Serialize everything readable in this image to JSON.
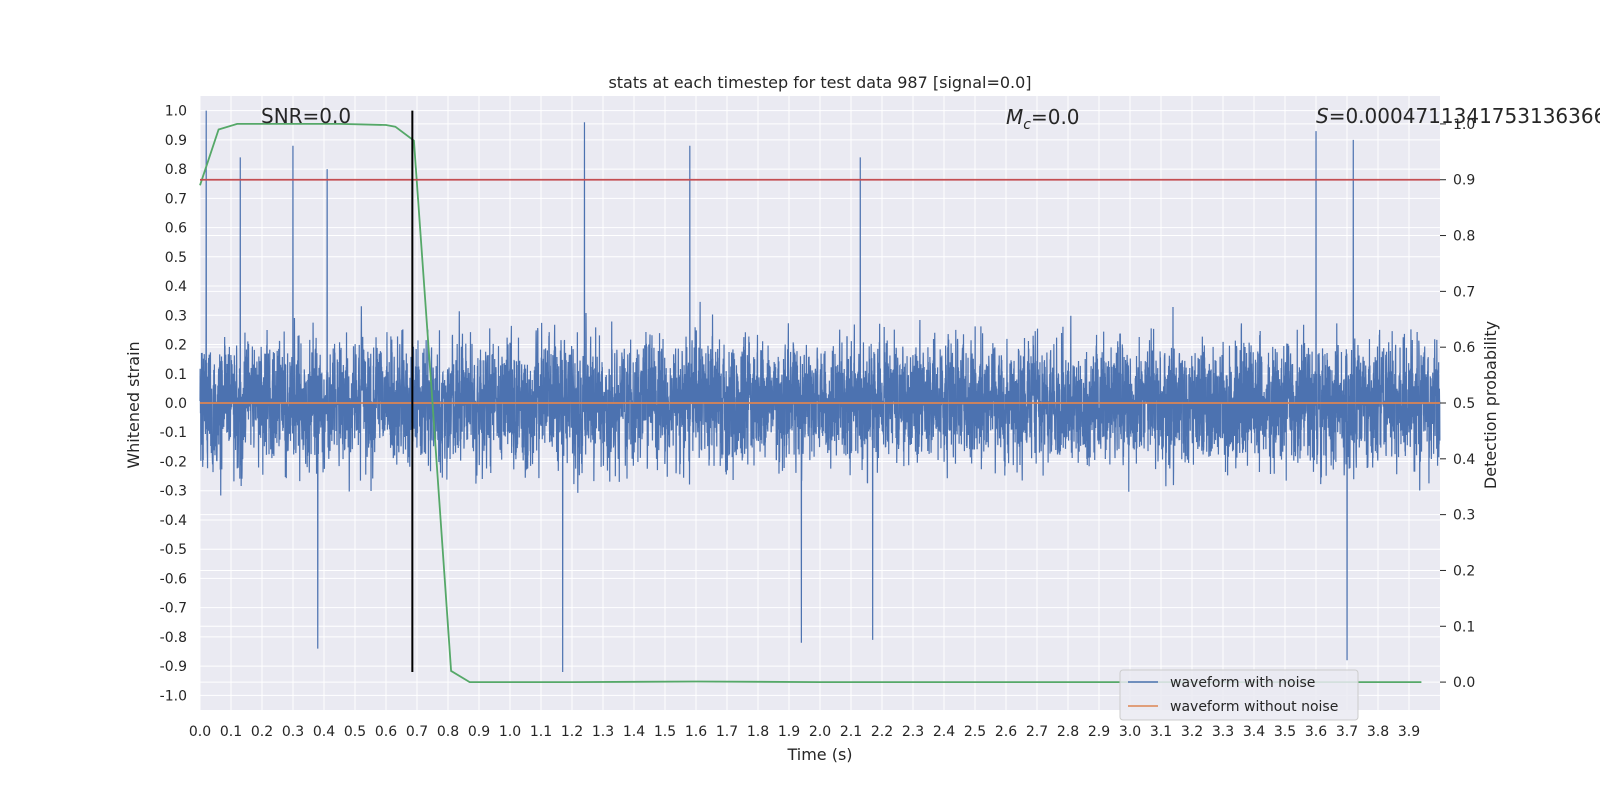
{
  "chart_data": {
    "type": "line",
    "title": "stats at each timestep for test data 987 [signal=0.0]",
    "xlabel": "Time (s)",
    "ylabel_left": "Whitened strain",
    "ylabel_right": "Detection probability",
    "xlim": [
      0.0,
      4.0
    ],
    "ylim_left": [
      -1.05,
      1.05
    ],
    "ylim_right": [
      -0.05,
      1.05
    ],
    "x_ticks": [
      "0.0",
      "0.1",
      "0.2",
      "0.3",
      "0.4",
      "0.5",
      "0.6",
      "0.7",
      "0.8",
      "0.9",
      "1.0",
      "1.1",
      "1.2",
      "1.3",
      "1.4",
      "1.5",
      "1.6",
      "1.7",
      "1.8",
      "1.9",
      "2.0",
      "2.1",
      "2.2",
      "2.3",
      "2.4",
      "2.5",
      "2.6",
      "2.7",
      "2.8",
      "2.9",
      "3.0",
      "3.1",
      "3.2",
      "3.3",
      "3.4",
      "3.5",
      "3.6",
      "3.7",
      "3.8",
      "3.9"
    ],
    "y_left_ticks": [
      "1.0",
      "0.9",
      "0.8",
      "0.7",
      "0.6",
      "0.5",
      "0.4",
      "0.3",
      "0.2",
      "0.1",
      "0.0",
      "-0.1",
      "-0.2",
      "-0.3",
      "-0.4",
      "-0.5",
      "-0.6",
      "-0.7",
      "-0.8",
      "-0.9",
      "-1.0"
    ],
    "y_right_ticks": [
      "1.0",
      "0.9",
      "0.8",
      "0.7",
      "0.6",
      "0.5",
      "0.4",
      "0.3",
      "0.2",
      "0.1",
      "0.0"
    ],
    "annotations": {
      "snr": "SNR=0.0",
      "mc_symbol": "M",
      "mc_sub": "c",
      "mc_value": "=0.0",
      "s_symbol": "S",
      "s_value": "=0.0004711341753136366"
    },
    "series": [
      {
        "name": "waveform with noise",
        "axis": "left",
        "color": "#4c72b0",
        "description": "dense whitened-strain noise sampled over 0-4 s, amplitude mostly within [-0.5, 0.6] with spikes near +/-0.9",
        "noise_sample_rate_hz": 2048,
        "noise_seed": 987,
        "notable_spikes": [
          {
            "t": 0.02,
            "v": 1.0
          },
          {
            "t": 0.13,
            "v": 0.84
          },
          {
            "t": 0.3,
            "v": 0.88
          },
          {
            "t": 0.41,
            "v": 0.8
          },
          {
            "t": 1.24,
            "v": 0.96
          },
          {
            "t": 1.58,
            "v": 0.88
          },
          {
            "t": 2.13,
            "v": 0.84
          },
          {
            "t": 3.6,
            "v": 0.93
          },
          {
            "t": 3.72,
            "v": 0.9
          },
          {
            "t": 0.38,
            "v": -0.84
          },
          {
            "t": 1.17,
            "v": -0.92
          },
          {
            "t": 1.94,
            "v": -0.82
          },
          {
            "t": 2.17,
            "v": -0.81
          },
          {
            "t": 3.7,
            "v": -0.88
          }
        ]
      },
      {
        "name": "waveform without noise",
        "axis": "left",
        "color": "#dd8452",
        "x": [
          0.0,
          4.0
        ],
        "y": [
          0.0,
          0.0
        ]
      },
      {
        "name": "detection probability",
        "axis": "right",
        "color": "#55a868",
        "x": [
          0.0,
          0.06,
          0.12,
          0.18,
          0.3,
          0.45,
          0.6,
          0.63,
          0.69,
          0.75,
          0.81,
          0.87,
          0.9,
          1.0,
          1.2,
          1.6,
          2.0,
          3.0,
          3.94
        ],
        "y": [
          0.89,
          0.99,
          1.0,
          1.0,
          1.0,
          1.0,
          0.998,
          0.995,
          0.97,
          0.5,
          0.02,
          0.0,
          0.0,
          0.0,
          0.0,
          0.001,
          0.0,
          0.0,
          0.0
        ]
      },
      {
        "name": "threshold",
        "axis": "right",
        "color": "#c44e52",
        "x": [
          0.0,
          4.0
        ],
        "y": [
          0.9,
          0.9
        ]
      }
    ],
    "vertical_marker": {
      "x": 0.685,
      "y_left_from": -0.92,
      "y_left_to": 1.0,
      "color": "#000000"
    },
    "legend": {
      "placement": "lower-right",
      "entries": [
        {
          "label": "waveform with noise",
          "color": "#4c72b0"
        },
        {
          "label": "waveform without noise",
          "color": "#dd8452"
        }
      ]
    },
    "grid": true,
    "style": {
      "plot_background": "#eaeaf2",
      "grid_color": "#ffffff"
    }
  }
}
